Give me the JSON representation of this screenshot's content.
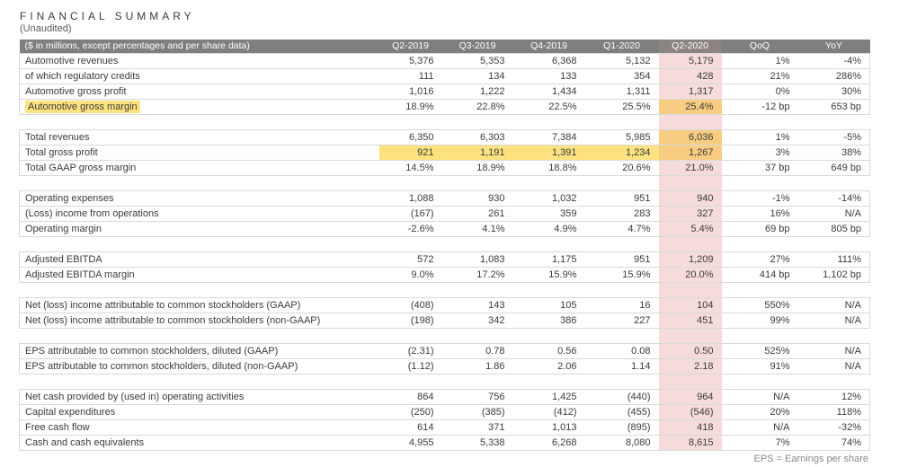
{
  "page": {
    "title": "FINANCIAL SUMMARY",
    "subtitle": "(Unaudited)",
    "footnote": "EPS = Earnings per share"
  },
  "colors": {
    "header_bg": "#7f7f7f",
    "header_hl_bg": "#8b8480",
    "header_text": "#ffffff",
    "pink": "#f5dcda",
    "yellow": "#fde27f",
    "orange": "#f8cd82",
    "border": "#d9d9d9",
    "text": "#3b3b3b"
  },
  "table": {
    "header": [
      "($ in millions, except percentages and per share data)",
      "Q2-2019",
      "Q3-2019",
      "Q4-2019",
      "Q1-2020",
      "Q2-2020",
      "QoQ",
      "YoY"
    ],
    "highlight_column_index": 5,
    "rows": [
      {
        "label": "Automotive revenues",
        "values": [
          "5,376",
          "5,353",
          "6,368",
          "5,132",
          "5,179",
          "1%",
          "-4%"
        ]
      },
      {
        "label": "of which regulatory credits",
        "indent": true,
        "values": [
          "111",
          "134",
          "133",
          "354",
          "428",
          "21%",
          "286%"
        ]
      },
      {
        "label": "Automotive gross profit",
        "values": [
          "1,016",
          "1,222",
          "1,434",
          "1,311",
          "1,317",
          "0%",
          "30%"
        ]
      },
      {
        "label": "Automotive gross margin",
        "label_highlight": true,
        "values": [
          "18.9%",
          "22.8%",
          "22.5%",
          "25.5%",
          "25.4%",
          "-12 bp",
          "653 bp"
        ],
        "highlight_cells": [
          4
        ]
      },
      {
        "spacer": true
      },
      {
        "label": "Total revenues",
        "values": [
          "6,350",
          "6,303",
          "7,384",
          "5,985",
          "6,036",
          "1%",
          "-5%"
        ],
        "highlight_cells": [
          4
        ]
      },
      {
        "label": "Total gross profit",
        "values": [
          "921",
          "1,191",
          "1,391",
          "1,234",
          "1,267",
          "3%",
          "38%"
        ],
        "highlight_cells": [
          0,
          1,
          2,
          3,
          4
        ]
      },
      {
        "label": "Total GAAP gross margin",
        "values": [
          "14.5%",
          "18.9%",
          "18.8%",
          "20.6%",
          "21.0%",
          "37 bp",
          "649 bp"
        ]
      },
      {
        "spacer": true
      },
      {
        "label": "Operating expenses",
        "values": [
          "1,088",
          "930",
          "1,032",
          "951",
          "940",
          "-1%",
          "-14%"
        ]
      },
      {
        "label": "(Loss) income from operations",
        "values": [
          "(167)",
          "261",
          "359",
          "283",
          "327",
          "16%",
          "N/A"
        ]
      },
      {
        "label": "Operating margin",
        "values": [
          "-2.6%",
          "4.1%",
          "4.9%",
          "4.7%",
          "5.4%",
          "69 bp",
          "805 bp"
        ]
      },
      {
        "spacer": true
      },
      {
        "label": "Adjusted EBITDA",
        "values": [
          "572",
          "1,083",
          "1,175",
          "951",
          "1,209",
          "27%",
          "111%"
        ]
      },
      {
        "label": "Adjusted EBITDA margin",
        "values": [
          "9.0%",
          "17.2%",
          "15.9%",
          "15.9%",
          "20.0%",
          "414 bp",
          "1,102 bp"
        ]
      },
      {
        "spacer": true
      },
      {
        "label": "Net (loss) income attributable to common stockholders (GAAP)",
        "values": [
          "(408)",
          "143",
          "105",
          "16",
          "104",
          "550%",
          "N/A"
        ]
      },
      {
        "label": "Net (loss) income attributable to common stockholders (non-GAAP)",
        "values": [
          "(198)",
          "342",
          "386",
          "227",
          "451",
          "99%",
          "N/A"
        ]
      },
      {
        "spacer": true
      },
      {
        "label": "EPS attributable to common stockholders, diluted (GAAP)",
        "values": [
          "(2.31)",
          "0.78",
          "0.56",
          "0.08",
          "0.50",
          "525%",
          "N/A"
        ]
      },
      {
        "label": "EPS attributable to common stockholders, diluted (non-GAAP)",
        "values": [
          "(1.12)",
          "1.86",
          "2.06",
          "1.14",
          "2.18",
          "91%",
          "N/A"
        ]
      },
      {
        "spacer": true
      },
      {
        "label": "Net cash provided by (used in) operating activities",
        "values": [
          "864",
          "756",
          "1,425",
          "(440)",
          "964",
          "N/A",
          "12%"
        ]
      },
      {
        "label": "Capital expenditures",
        "values": [
          "(250)",
          "(385)",
          "(412)",
          "(455)",
          "(546)",
          "20%",
          "118%"
        ]
      },
      {
        "label": "Free cash flow",
        "values": [
          "614",
          "371",
          "1,013",
          "(895)",
          "418",
          "N/A",
          "-32%"
        ]
      },
      {
        "label": "Cash and cash equivalents",
        "values": [
          "4,955",
          "5,338",
          "6,268",
          "8,080",
          "8,615",
          "7%",
          "74%"
        ]
      }
    ]
  }
}
